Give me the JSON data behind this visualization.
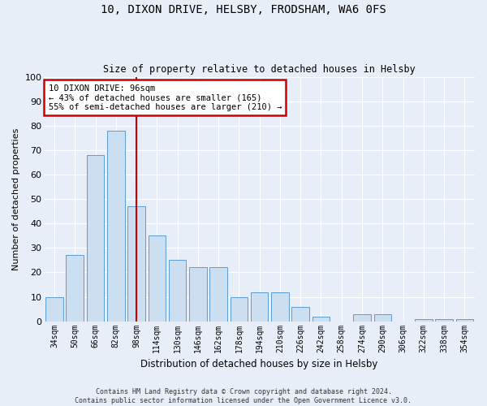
{
  "title": "10, DIXON DRIVE, HELSBY, FRODSHAM, WA6 0FS",
  "subtitle": "Size of property relative to detached houses in Helsby",
  "xlabel": "Distribution of detached houses by size in Helsby",
  "ylabel": "Number of detached properties",
  "categories": [
    "34sqm",
    "50sqm",
    "66sqm",
    "82sqm",
    "98sqm",
    "114sqm",
    "130sqm",
    "146sqm",
    "162sqm",
    "178sqm",
    "194sqm",
    "210sqm",
    "226sqm",
    "242sqm",
    "258sqm",
    "274sqm",
    "290sqm",
    "306sqm",
    "322sqm",
    "338sqm",
    "354sqm"
  ],
  "values": [
    10,
    27,
    68,
    78,
    47,
    35,
    25,
    22,
    22,
    10,
    12,
    12,
    6,
    2,
    0,
    3,
    3,
    0,
    1,
    1,
    1
  ],
  "bar_color": "#ccdff0",
  "bar_edge_color": "#5b9bd5",
  "highlight_index": 4,
  "highlight_line_color": "#cc0000",
  "ylim": [
    0,
    100
  ],
  "yticks": [
    0,
    10,
    20,
    30,
    40,
    50,
    60,
    70,
    80,
    90,
    100
  ],
  "annotation_line1": "10 DIXON DRIVE: 96sqm",
  "annotation_line2": "← 43% of detached houses are smaller (165)",
  "annotation_line3": "55% of semi-detached houses are larger (210) →",
  "annotation_box_color": "#ffffff",
  "annotation_box_edgecolor": "#cc0000",
  "footer_line1": "Contains HM Land Registry data © Crown copyright and database right 2024.",
  "footer_line2": "Contains public sector information licensed under the Open Government Licence v3.0.",
  "bg_color": "#e8eef8",
  "plot_bg_color": "#e8eef8",
  "grid_color": "#ffffff"
}
